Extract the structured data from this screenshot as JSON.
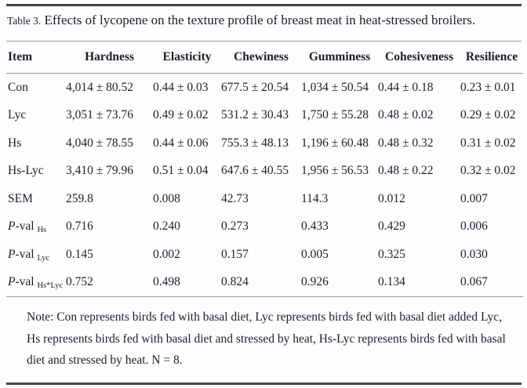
{
  "title": {
    "label": "Table 3.",
    "text": "Effects of lycopene on the texture profile of breast meat in heat-stressed broilers."
  },
  "table": {
    "columns": [
      "Item",
      "Hardness",
      "Elasticity",
      "Chewiness",
      "Gumminess",
      "Cohesiveness",
      "Resilience"
    ],
    "rows": [
      {
        "label": {
          "text": "Con"
        },
        "values": [
          "4,014 ± 80.52",
          "0.44 ± 0.03",
          "677.5 ± 20.54",
          "1,034 ± 50.54",
          "0.44 ± 0.18",
          "0.23 ± 0.01"
        ]
      },
      {
        "label": {
          "text": "Lyc"
        },
        "values": [
          "3,051 ± 73.76",
          "0.49 ± 0.02",
          "531.2 ± 30.43",
          "1,750 ± 55.28",
          "0.48 ± 0.02",
          "0.29 ± 0.02"
        ]
      },
      {
        "label": {
          "text": "Hs"
        },
        "values": [
          "4,040 ± 78.55",
          "0.44 ± 0.06",
          "755.3 ± 48.13",
          "1,196 ± 60.48",
          "0.48 ± 0.32",
          "0.31 ± 0.02"
        ]
      },
      {
        "label": {
          "text": "Hs-Lyc"
        },
        "values": [
          "3,410 ± 79.96",
          "0.51 ± 0.04",
          "647.6 ± 40.55",
          "1,956 ± 56.53",
          "0.48 ± 0.22",
          "0.32 ± 0.02"
        ]
      },
      {
        "label": {
          "text": "SEM"
        },
        "values": [
          "259.8",
          "0.008",
          "42.73",
          "114.3",
          "0.012",
          "0.007"
        ]
      },
      {
        "label": {
          "italic": "P",
          "text": "-val ",
          "sub": "Hs"
        },
        "values": [
          "0.716",
          "0.240",
          "0.273",
          "0.433",
          "0.429",
          "0.006"
        ]
      },
      {
        "label": {
          "italic": "P",
          "text": "-val ",
          "sub": "Lyc"
        },
        "values": [
          "0.145",
          "0.002",
          "0.157",
          "0.005",
          "0.325",
          "0.030"
        ]
      },
      {
        "label": {
          "italic": "P",
          "text": "-val ",
          "sub": "Hs*Lyc"
        },
        "values": [
          "0.752",
          "0.498",
          "0.824",
          "0.926",
          "0.134",
          "0.067"
        ]
      }
    ]
  },
  "note": "Note: Con represents birds fed with basal diet, Lyc represents birds fed with basal diet added Lyc, Hs represents birds fed with basal diet and stressed by heat, Hs-Lyc represents birds fed with basal diet and stressed by heat. N = 8."
}
